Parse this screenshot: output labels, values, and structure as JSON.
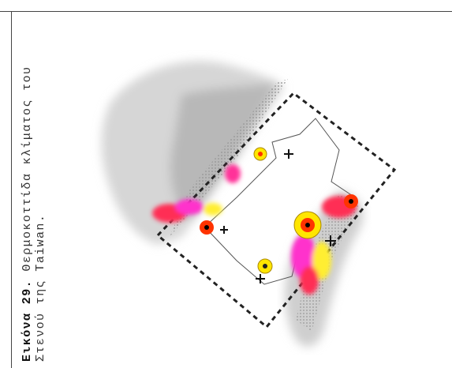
{
  "caption": {
    "label": "Εικόνα 29.",
    "lines": [
      "Θερμοκοττίδα κλίματος του",
      "Στενού της Taiwan."
    ]
  }
}
